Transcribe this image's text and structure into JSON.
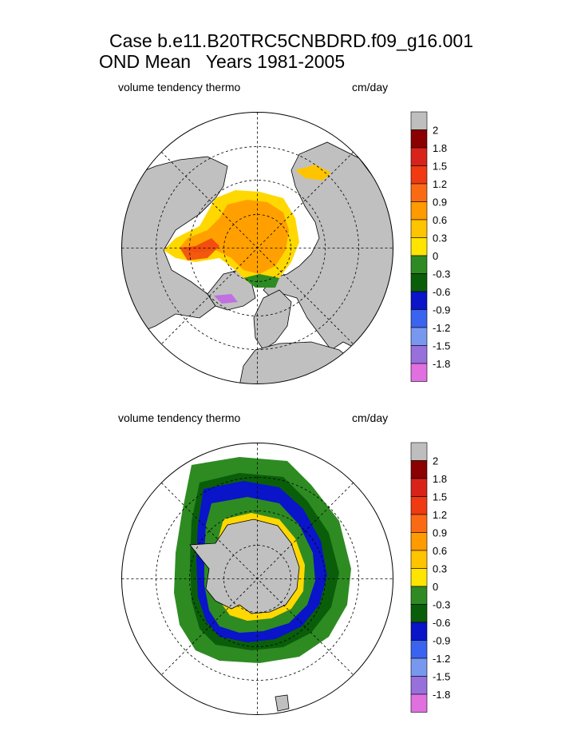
{
  "title": {
    "line1": "Case b.e11.B20TRC5CNBDRD.f09_g16.001",
    "line2": "OND Mean   Years 1981-2005"
  },
  "panels": [
    {
      "name": "arctic",
      "variable_label": "volume tendency thermo",
      "units_label": "cm/day"
    },
    {
      "name": "antarctic",
      "variable_label": "volume tendency thermo",
      "units_label": "cm/day"
    }
  ],
  "colorbar": {
    "labels": [
      "2",
      "1.8",
      "1.5",
      "1.2",
      "0.9",
      "0.6",
      "0.3",
      "0",
      "-0.3",
      "-0.6",
      "-0.9",
      "-1.2",
      "-1.5",
      "-1.8"
    ],
    "colors": [
      "#bebebe",
      "#8b0000",
      "#d8231a",
      "#ef3a12",
      "#fa6a14",
      "#ff9a00",
      "#ffc400",
      "#ffe400",
      "#2f8a24",
      "#0a5e0a",
      "#0a14c8",
      "#3a64f0",
      "#7898f0",
      "#9870dc",
      "#e070e0"
    ]
  },
  "colors": {
    "land": "#c0c0c0",
    "ocean": "#ffffff",
    "ice_positive": "#ffa000",
    "ice_growth_edge": "#ffd800",
    "ice_negative": "#2e8b22"
  }
}
